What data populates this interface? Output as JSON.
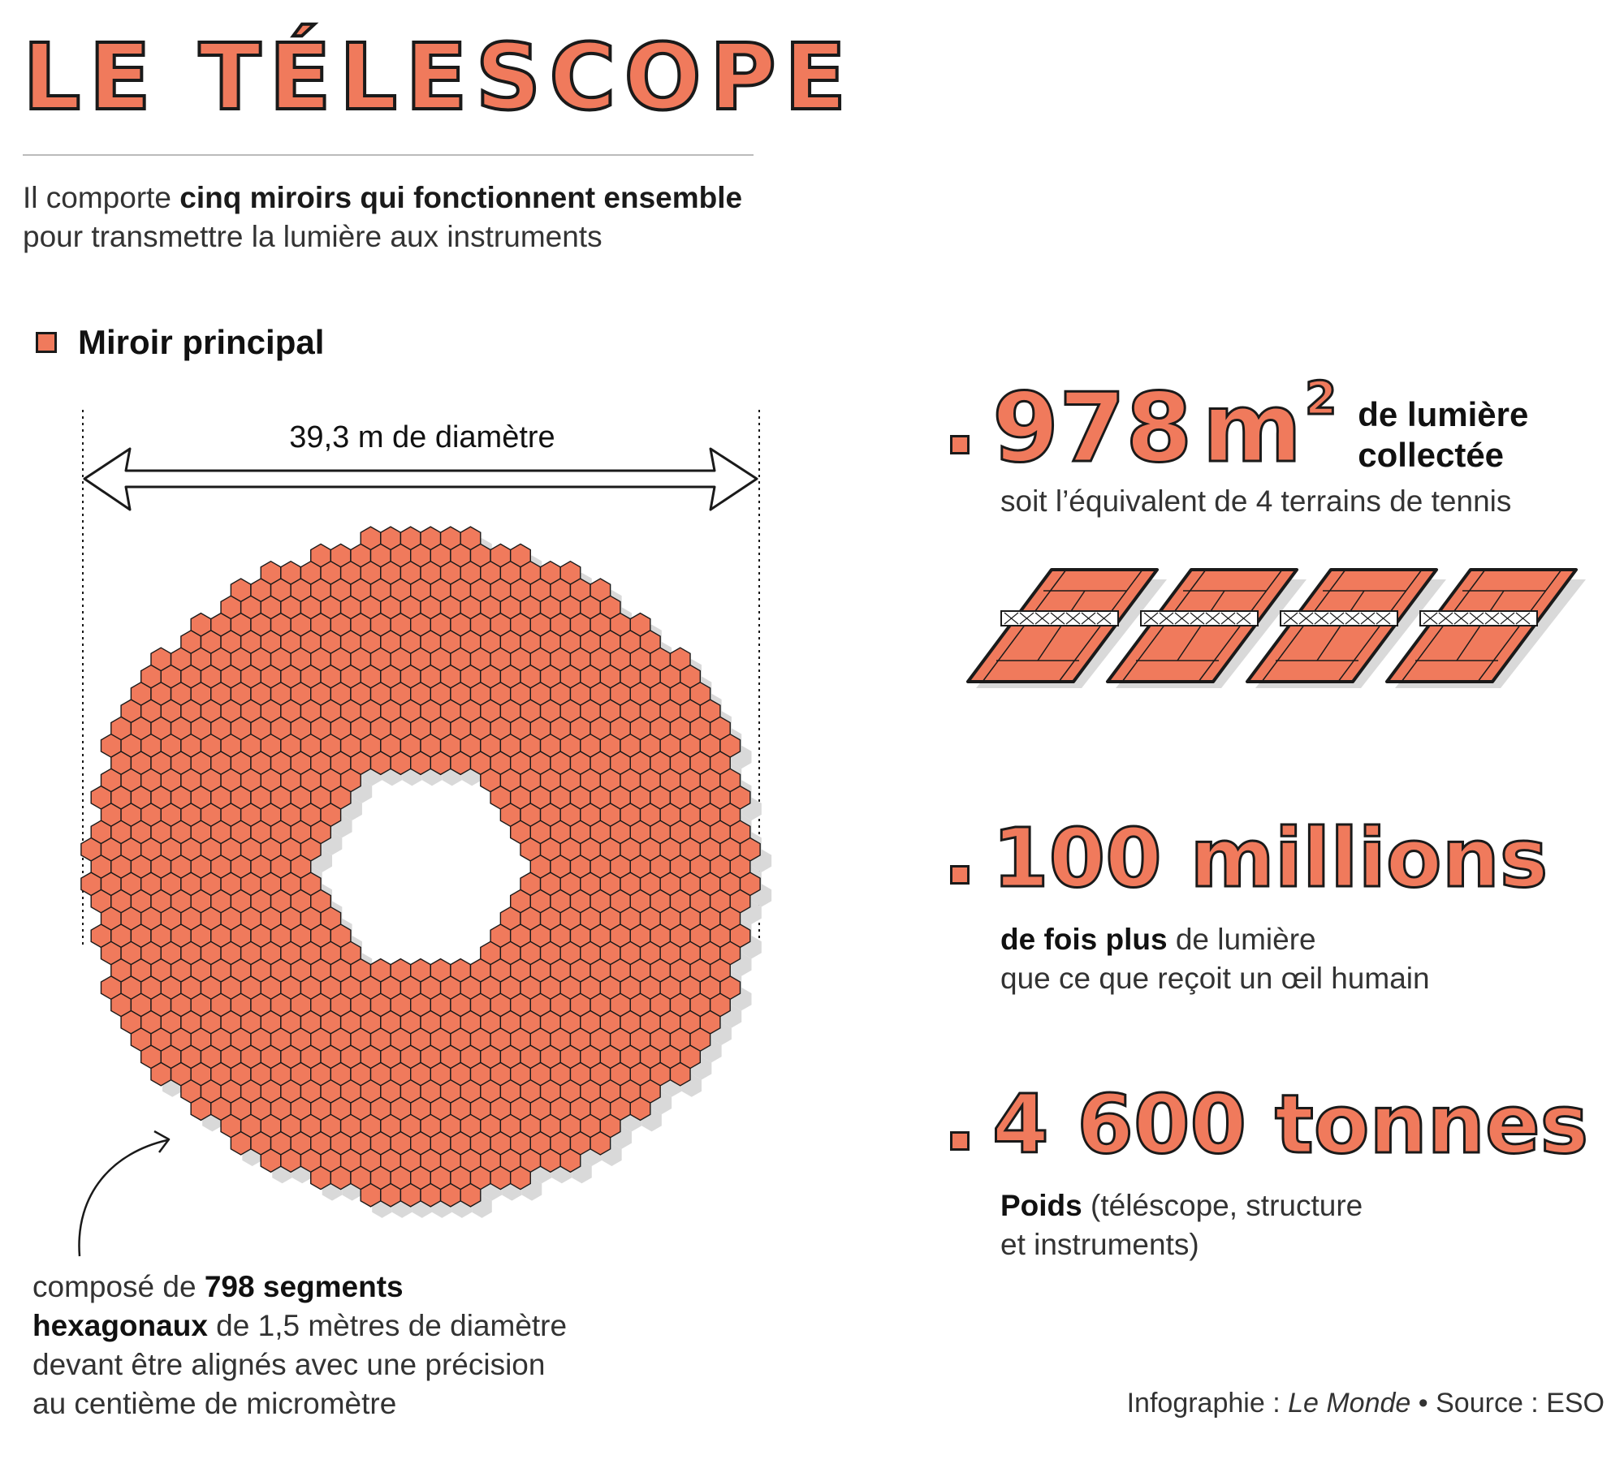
{
  "header": {
    "title": "LE TÉLESCOPE",
    "intro_pre": "Il comporte ",
    "intro_bold": "cinq miroirs qui fonctionnent ensemble",
    "intro_post": "pour transmettre la lumière aux instruments"
  },
  "mirror": {
    "section_title": "Miroir principal",
    "diameter_label": "39,3 m de diamètre",
    "note_pre": "composé de ",
    "note_bold1": "798 segments",
    "note_bold2": "hexagonaux",
    "note_post1": " de 1,5 mètres de diamètre",
    "note_post2": "devant être alignés avec une précision",
    "note_post3": "au centième de micromètre"
  },
  "stats": {
    "area_value": "978",
    "area_unit": "m",
    "area_exp": "2",
    "area_label_line1": "de lumière",
    "area_label_line2": "collectée",
    "area_sub": "soit l’équivalent de 4 terrains de tennis",
    "tennis_courts": 4,
    "light_value": "100 millions",
    "light_bold": "de fois plus",
    "light_post": " de lumière",
    "light_line2": "que ce que reçoit un œil humain",
    "weight_value": "4 600 tonnes",
    "weight_bold": "Poids",
    "weight_post": " (téléscope, structure",
    "weight_line2": "et instruments)"
  },
  "credit": {
    "pre": "Infographie : ",
    "source_name": "Le Monde",
    "post": " • Source : ESO"
  },
  "colors": {
    "accent": "#f07a5c",
    "outline": "#1a1a1a",
    "shadow": "#d9d9d9"
  }
}
